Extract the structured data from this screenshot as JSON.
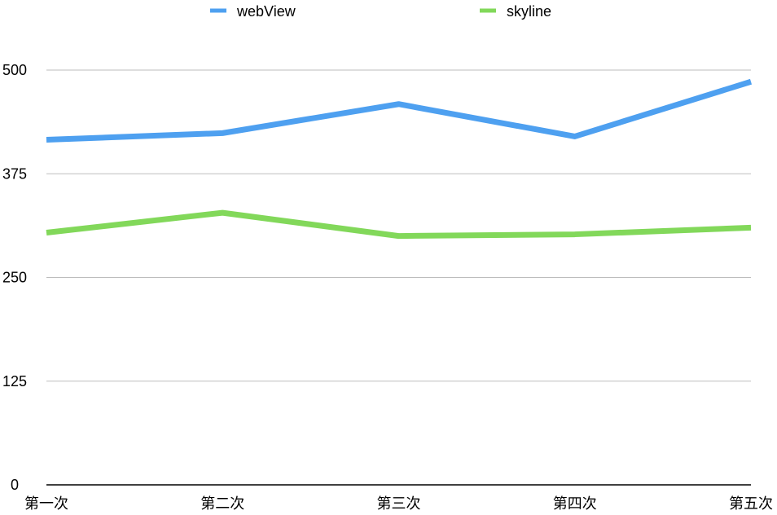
{
  "chart_data": {
    "type": "line",
    "title": "",
    "xlabel": "",
    "ylabel": "",
    "categories": [
      "第一次",
      "第二次",
      "第三次",
      "第四次",
      "第五次"
    ],
    "y_ticks": [
      0,
      125,
      250,
      375,
      500
    ],
    "y_tick_labels": [
      "0",
      "125",
      "250",
      "375",
      "500"
    ],
    "ylim": [
      0,
      500
    ],
    "grid": true,
    "legend_position": "top",
    "series": [
      {
        "name": "webView",
        "color": "#4ea0f0",
        "values": [
          416,
          424,
          459,
          420,
          486
        ]
      },
      {
        "name": "skyline",
        "color": "#82d85a",
        "values": [
          304,
          328,
          300,
          302,
          310
        ]
      }
    ]
  }
}
